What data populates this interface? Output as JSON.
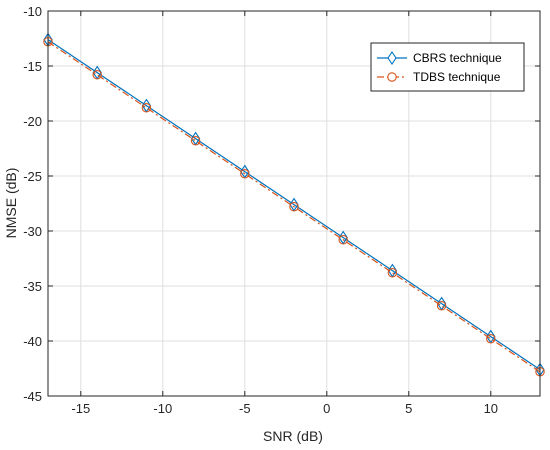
{
  "chart_data": {
    "type": "line",
    "title": "",
    "xlabel": "SNR (dB)",
    "ylabel": "NMSE (dB)",
    "xlim": [
      -17,
      13
    ],
    "ylim": [
      -45,
      -10
    ],
    "xticks": [
      -15,
      -10,
      -5,
      0,
      5,
      10
    ],
    "yticks": [
      -10,
      -15,
      -20,
      -25,
      -30,
      -35,
      -40,
      -45
    ],
    "grid": true,
    "legend_position": "top-right",
    "series": [
      {
        "name": "CBRS technique",
        "color": "#0072BD",
        "line_style": "solid",
        "marker": "diamond",
        "x": [
          -17,
          -14,
          -11,
          -8,
          -5,
          -2,
          1,
          4,
          7,
          10,
          13
        ],
        "y": [
          -12.6,
          -15.6,
          -18.6,
          -21.6,
          -24.6,
          -27.6,
          -30.6,
          -33.6,
          -36.6,
          -39.6,
          -42.6
        ]
      },
      {
        "name": "TDBS technique",
        "color": "#D95319",
        "line_style": "dashdot",
        "marker": "circle",
        "x": [
          -17,
          -14,
          -11,
          -8,
          -5,
          -2,
          1,
          4,
          7,
          10,
          13
        ],
        "y": [
          -12.8,
          -15.8,
          -18.8,
          -21.8,
          -24.8,
          -27.8,
          -30.8,
          -33.8,
          -36.8,
          -39.8,
          -42.8
        ]
      }
    ]
  }
}
